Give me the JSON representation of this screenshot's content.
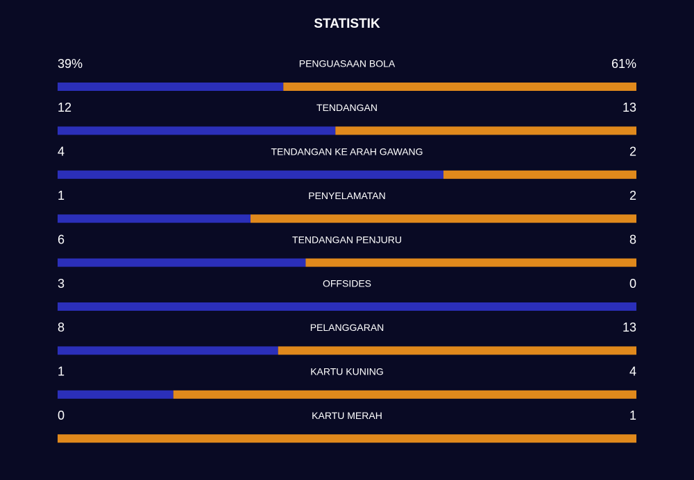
{
  "header": {
    "title": "STATISTIK"
  },
  "home_color": "#2b2fb9",
  "away_color": "#e0891c",
  "stats": [
    {
      "label": "PENGUASAAN BOLA",
      "home": 39,
      "away": 61,
      "home_label": "39%",
      "away_label": "61%"
    },
    {
      "label": "TENDANGAN",
      "home": 12,
      "away": 13
    },
    {
      "label": "TENDANGAN KE ARAH GAWANG",
      "home": 4,
      "away": 2
    },
    {
      "label": "PENYELAMATAN",
      "home": 1,
      "away": 2
    },
    {
      "label": "TENDANGAN PENJURU",
      "home": 6,
      "away": 8
    },
    {
      "label": "OFFSIDES",
      "home": 3,
      "away": 0
    },
    {
      "label": "PELANGGARAN",
      "home": 8,
      "away": 13
    },
    {
      "label": "KARTU KUNING",
      "home": 1,
      "away": 4
    },
    {
      "label": "KARTU MERAH",
      "home": 0,
      "away": 1
    }
  ]
}
